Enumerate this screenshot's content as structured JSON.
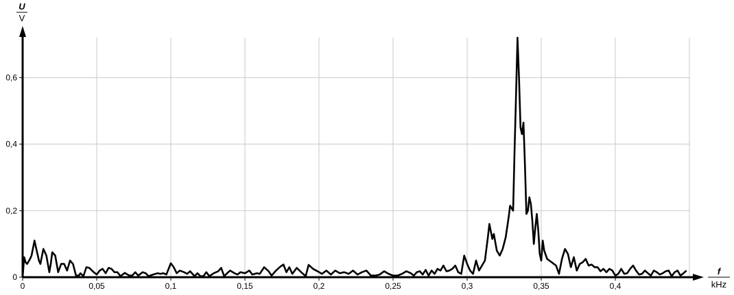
{
  "chart_data": {
    "type": "line",
    "title": "",
    "ylabel": {
      "symbol": "U",
      "unit": "V"
    },
    "xlabel": {
      "symbol": "f",
      "unit": "kHz"
    },
    "xlim": [
      0,
      0.45
    ],
    "ylim": [
      0,
      0.72
    ],
    "grid": true,
    "line_color": "#000000",
    "grid_color": "#c8c8c8",
    "x_ticks": [
      0,
      0.05,
      0.1,
      0.15,
      0.2,
      0.25,
      0.3,
      0.35,
      0.4
    ],
    "x_tick_labels": [
      "0",
      "0,05",
      "0,1",
      "0,15",
      "0,2",
      "0,25",
      "0,3",
      "0,35",
      "0,4"
    ],
    "y_ticks": [
      0,
      0.2,
      0.4,
      0.6
    ],
    "y_tick_labels": [
      "0",
      "0,2",
      "0,4",
      "0,6"
    ],
    "series": [
      {
        "x": [
          0,
          0.001,
          0.002,
          0.003,
          0.005,
          0.006,
          0.008,
          0.009,
          0.011,
          0.012,
          0.014,
          0.016,
          0.018,
          0.019,
          0.02,
          0.022,
          0.024,
          0.026,
          0.028,
          0.03,
          0.032,
          0.034,
          0.036,
          0.038,
          0.039,
          0.041,
          0.043,
          0.045,
          0.048,
          0.05,
          0.052,
          0.054,
          0.056,
          0.058,
          0.06,
          0.062,
          0.064,
          0.066,
          0.069,
          0.072,
          0.074,
          0.076,
          0.078,
          0.081,
          0.083,
          0.085,
          0.088,
          0.091,
          0.093,
          0.095,
          0.097,
          0.1,
          0.102,
          0.104,
          0.106,
          0.109,
          0.111,
          0.113,
          0.116,
          0.118,
          0.12,
          0.122,
          0.124,
          0.126,
          0.129,
          0.132,
          0.134,
          0.136,
          0.138,
          0.14,
          0.143,
          0.145,
          0.147,
          0.15,
          0.153,
          0.155,
          0.158,
          0.16,
          0.163,
          0.166,
          0.168,
          0.171,
          0.174,
          0.176,
          0.178,
          0.18,
          0.182,
          0.185,
          0.188,
          0.191,
          0.193,
          0.196,
          0.199,
          0.202,
          0.205,
          0.208,
          0.211,
          0.214,
          0.217,
          0.22,
          0.223,
          0.226,
          0.229,
          0.232,
          0.235,
          0.238,
          0.241,
          0.244,
          0.247,
          0.25,
          0.253,
          0.256,
          0.259,
          0.262,
          0.264,
          0.266,
          0.268,
          0.27,
          0.272,
          0.274,
          0.276,
          0.278,
          0.28,
          0.282,
          0.284,
          0.286,
          0.288,
          0.29,
          0.292,
          0.294,
          0.296,
          0.298,
          0.3,
          0.302,
          0.304,
          0.306,
          0.308,
          0.31,
          0.312,
          0.314,
          0.315,
          0.317,
          0.318,
          0.32,
          0.322,
          0.324,
          0.326,
          0.328,
          0.329,
          0.331,
          0.332,
          0.333,
          0.334,
          0.335,
          0.336,
          0.337,
          0.338,
          0.339,
          0.34,
          0.341,
          0.342,
          0.343,
          0.344,
          0.345,
          0.346,
          0.347,
          0.348,
          0.349,
          0.35,
          0.351,
          0.352,
          0.354,
          0.357,
          0.36,
          0.362,
          0.364,
          0.366,
          0.368,
          0.37,
          0.372,
          0.374,
          0.376,
          0.378,
          0.38,
          0.382,
          0.384,
          0.386,
          0.388,
          0.39,
          0.392,
          0.394,
          0.396,
          0.398,
          0.4,
          0.402,
          0.404,
          0.406,
          0.408,
          0.41,
          0.412,
          0.414,
          0.416,
          0.418,
          0.42,
          0.422,
          0.424,
          0.426,
          0.428,
          0.43,
          0.432,
          0.434,
          0.436,
          0.438,
          0.44,
          0.442,
          0.444,
          0.446,
          0.448
        ],
        "y": [
          0,
          0.06,
          0.045,
          0.04,
          0.055,
          0.065,
          0.11,
          0.09,
          0.05,
          0.04,
          0.085,
          0.065,
          0.015,
          0.04,
          0.075,
          0.065,
          0.015,
          0.04,
          0.04,
          0.02,
          0.05,
          0.04,
          0.005,
          0.005,
          0.012,
          0.003,
          0.03,
          0.028,
          0.015,
          0.008,
          0.02,
          0.025,
          0.012,
          0.028,
          0.025,
          0.015,
          0.015,
          0.003,
          0.013,
          0.005,
          0.005,
          0.015,
          0.005,
          0.015,
          0.012,
          0.003,
          0.008,
          0.012,
          0.01,
          0.012,
          0.008,
          0.042,
          0.03,
          0.012,
          0.02,
          0.015,
          0.01,
          0.018,
          0.003,
          0.012,
          0.003,
          0.003,
          0.015,
          0.003,
          0.012,
          0.018,
          0.028,
          0.003,
          0.012,
          0.02,
          0.012,
          0.008,
          0.015,
          0.012,
          0.02,
          0.008,
          0.012,
          0.01,
          0.03,
          0.018,
          0.005,
          0.02,
          0.032,
          0.038,
          0.015,
          0.03,
          0.01,
          0.028,
          0.015,
          0.003,
          0.037,
          0.025,
          0.018,
          0.01,
          0.02,
          0.008,
          0.02,
          0.012,
          0.015,
          0.01,
          0.02,
          0.008,
          0.015,
          0.02,
          0.005,
          0.005,
          0.008,
          0.018,
          0.01,
          0.005,
          0.005,
          0.01,
          0.018,
          0.012,
          0.005,
          0.015,
          0.018,
          0.008,
          0.022,
          0.005,
          0.02,
          0.01,
          0.025,
          0.02,
          0.035,
          0.018,
          0.02,
          0.025,
          0.035,
          0.015,
          0.01,
          0.065,
          0.04,
          0.02,
          0.01,
          0.05,
          0.02,
          0.035,
          0.05,
          0.12,
          0.16,
          0.115,
          0.13,
          0.08,
          0.065,
          0.085,
          0.12,
          0.18,
          0.215,
          0.2,
          0.38,
          0.55,
          0.72,
          0.6,
          0.45,
          0.43,
          0.465,
          0.34,
          0.19,
          0.2,
          0.24,
          0.22,
          0.17,
          0.1,
          0.15,
          0.19,
          0.14,
          0.07,
          0.05,
          0.11,
          0.08,
          0.055,
          0.045,
          0.035,
          0.01,
          0.055,
          0.085,
          0.07,
          0.03,
          0.06,
          0.02,
          0.04,
          0.045,
          0.055,
          0.035,
          0.038,
          0.03,
          0.03,
          0.018,
          0.025,
          0.015,
          0.025,
          0.02,
          0.005,
          0.01,
          0.025,
          0.01,
          0.012,
          0.025,
          0.035,
          0.02,
          0.008,
          0.01,
          0.02,
          0.012,
          0.005,
          0.02,
          0.015,
          0.008,
          0.012,
          0.018,
          0.02,
          0.003,
          0.015,
          0.02,
          0.005,
          0.012,
          0.02
        ]
      }
    ]
  }
}
